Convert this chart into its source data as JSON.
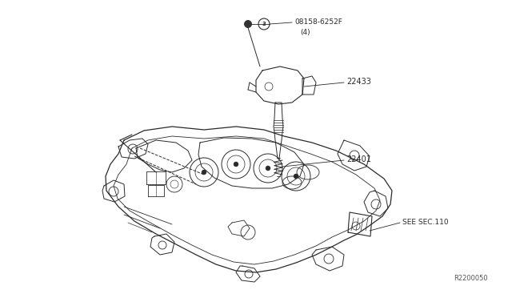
{
  "bg_color": "#ffffff",
  "line_color": "#2a2a2a",
  "figsize": [
    6.4,
    3.72
  ],
  "dpi": 100,
  "labels": {
    "bolt_part": "08158-6252F",
    "bolt_qty": "(4)",
    "coil": "22433",
    "spark_plug": "22401",
    "see_sec": "SEE SEC.110",
    "ref_num": "R2200050",
    "circle_ref": "3"
  }
}
